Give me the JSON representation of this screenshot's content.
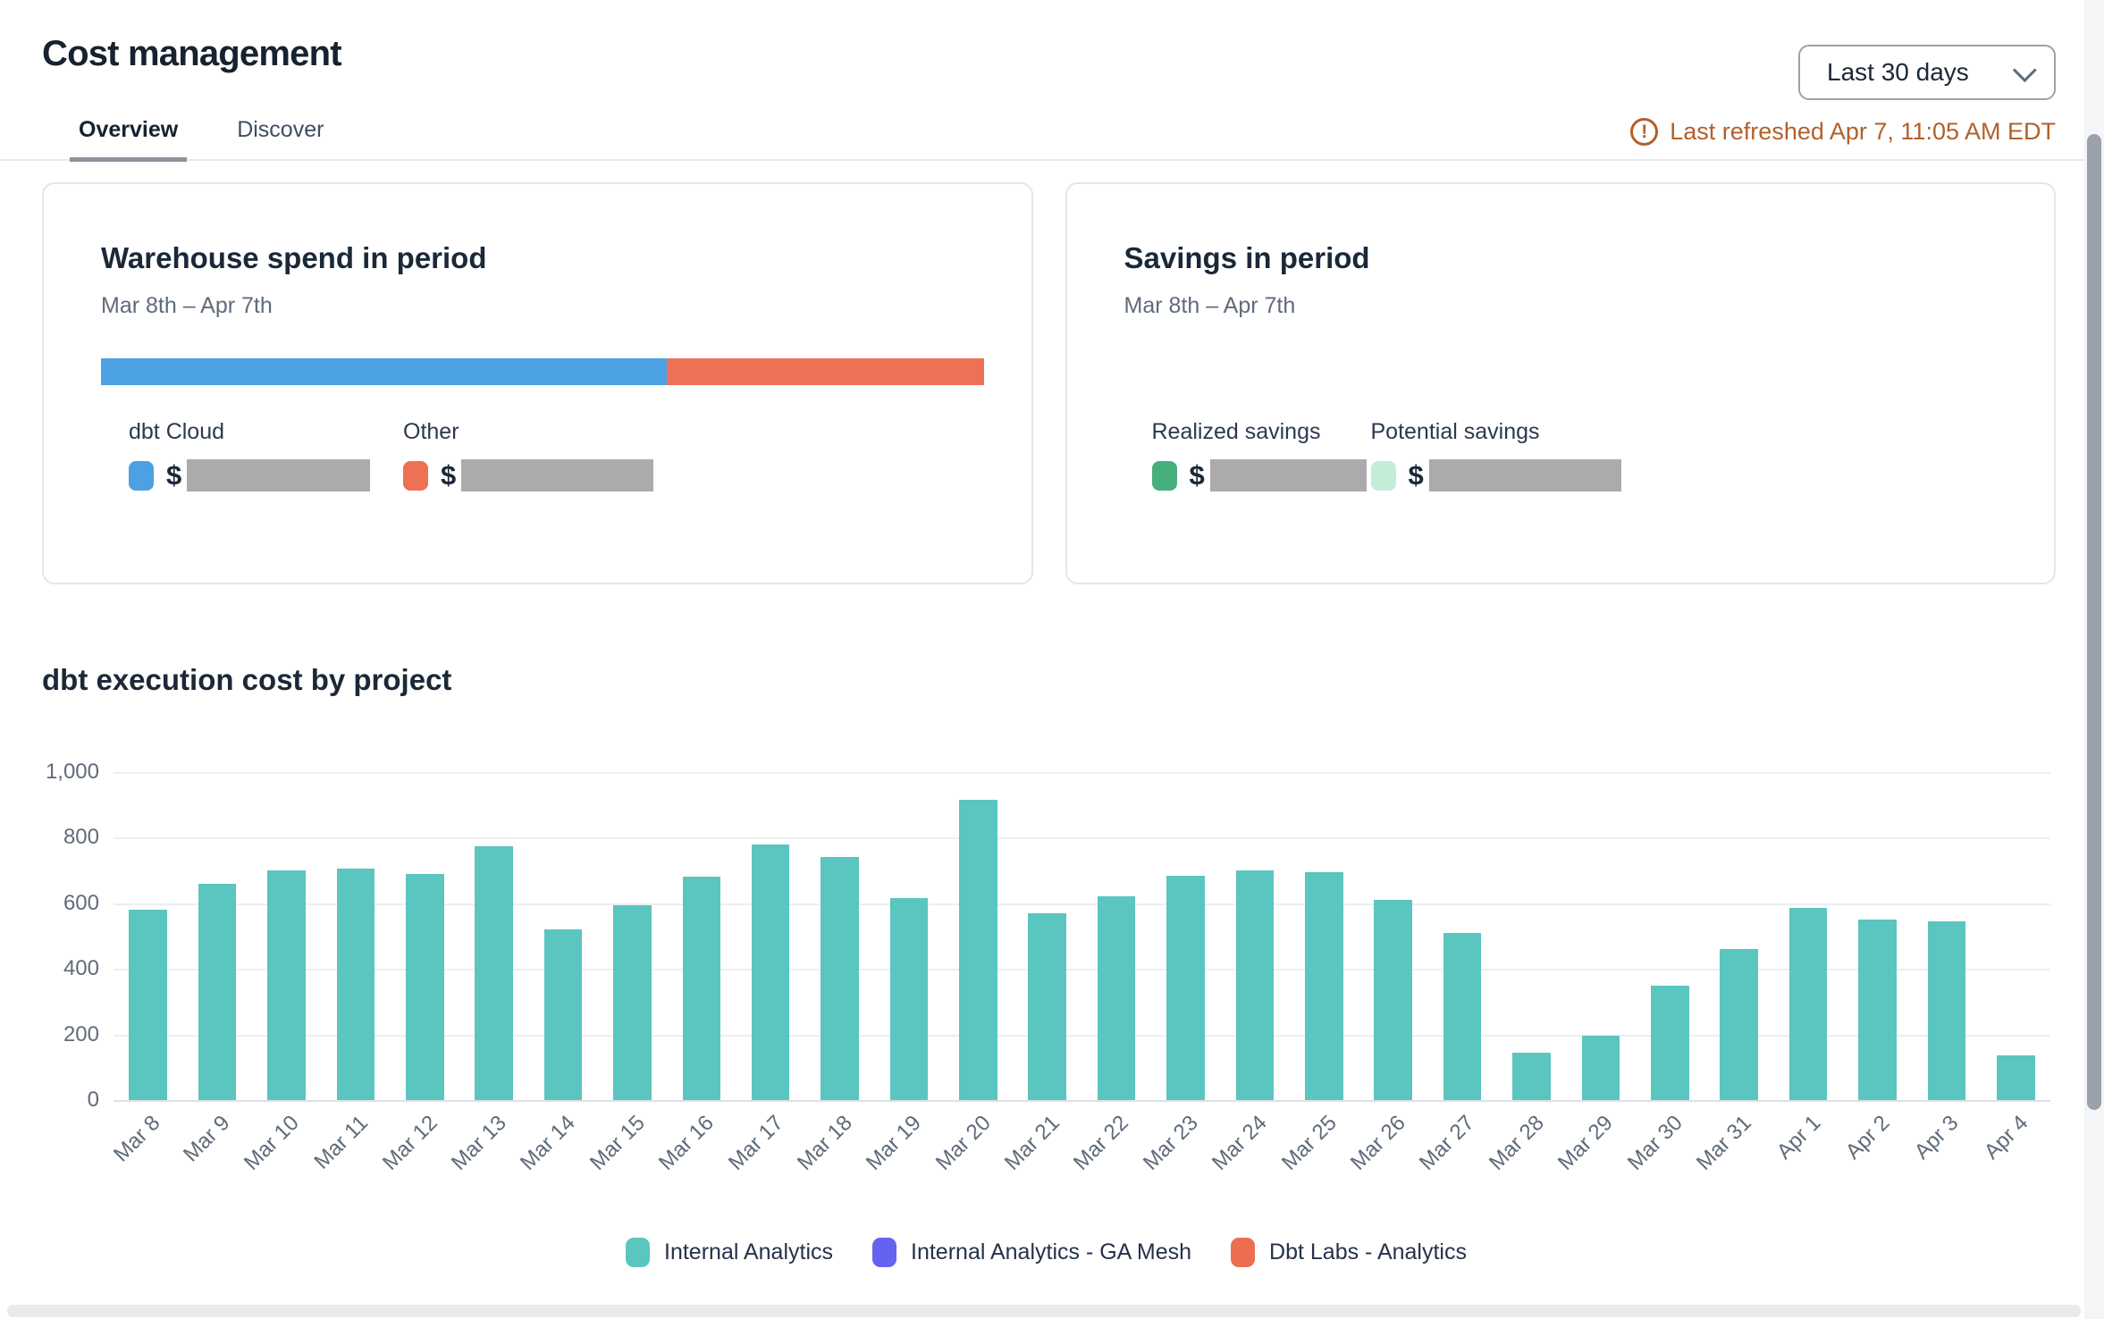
{
  "page": {
    "title": "Cost management"
  },
  "header": {
    "date_range": {
      "value": "Last 30 days"
    },
    "last_refreshed": "Last refreshed Apr 7, 11:05 AM EDT",
    "refresh_warning_color": "#B2602B"
  },
  "tabs": {
    "overview": "Overview",
    "discover": "Discover",
    "active": "Overview"
  },
  "warehouse_card": {
    "title": "Warehouse spend in period",
    "period": "Mar 8th – Apr 7th",
    "spend_bar": {
      "segments": [
        {
          "name": "dbt Cloud",
          "color": "#4BA1E1",
          "fraction": 0.64
        },
        {
          "name": "Other",
          "color": "#ED7155",
          "fraction": 0.36
        }
      ]
    },
    "items": [
      {
        "label": "dbt Cloud",
        "swatch_color": "#4BA1E1",
        "currency_prefix": "$",
        "value_redacted": true
      },
      {
        "label": "Other",
        "swatch_color": "#ED7155",
        "currency_prefix": "$",
        "value_redacted": true
      }
    ]
  },
  "savings_card": {
    "title": "Savings in period",
    "period": "Mar 8th – Apr 7th",
    "items": [
      {
        "label": "Realized savings",
        "swatch_color": "#45B07C",
        "currency_prefix": "$",
        "value_redacted": true
      },
      {
        "label": "Potential savings",
        "swatch_color": "#C3EDD6",
        "currency_prefix": "$",
        "value_redacted": true
      }
    ]
  },
  "chart_section": {
    "title": "dbt execution cost by project"
  },
  "chart_data": {
    "type": "bar",
    "title": "dbt execution cost by project",
    "categories": [
      "Mar 8",
      "Mar 9",
      "Mar 10",
      "Mar 11",
      "Mar 12",
      "Mar 13",
      "Mar 14",
      "Mar 15",
      "Mar 16",
      "Mar 17",
      "Mar 18",
      "Mar 19",
      "Mar 20",
      "Mar 21",
      "Mar 22",
      "Mar 23",
      "Mar 24",
      "Mar 25",
      "Mar 26",
      "Mar 27",
      "Mar 28",
      "Mar 29",
      "Mar 30",
      "Mar 31",
      "Apr 1",
      "Apr 2",
      "Apr 3",
      "Apr 4"
    ],
    "series": [
      {
        "name": "Internal Analytics",
        "color": "#5BC5C0",
        "values": [
          580,
          660,
          700,
          705,
          690,
          775,
          520,
          595,
          680,
          780,
          740,
          615,
          915,
          570,
          620,
          685,
          700,
          695,
          610,
          510,
          145,
          195,
          350,
          460,
          585,
          550,
          545,
          135
        ]
      }
    ],
    "legend": [
      {
        "label": "Internal Analytics",
        "color": "#5BC5C0"
      },
      {
        "label": "Internal Analytics - GA Mesh",
        "color": "#6562EF"
      },
      {
        "label": "Dbt Labs - Analytics",
        "color": "#ED6E4F"
      }
    ],
    "xlabel": "",
    "ylabel": "",
    "ylim": [
      0,
      1000
    ],
    "yticks": [
      {
        "value": 0,
        "label": "0"
      },
      {
        "value": 200,
        "label": "200"
      },
      {
        "value": 400,
        "label": "400"
      },
      {
        "value": 600,
        "label": "600"
      },
      {
        "value": 800,
        "label": "800"
      },
      {
        "value": 1000,
        "label": "1,000"
      }
    ],
    "grid": true,
    "legend_position": "bottom"
  }
}
